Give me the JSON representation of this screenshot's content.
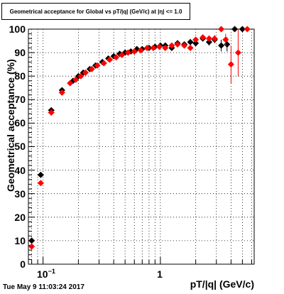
{
  "title": "Geometrical acceptance for Global vs pT/|q| (GeV/c) at |η| <= 1.0",
  "timestamp": "Tue May  9 11:03:24 2017",
  "chart_data": {
    "type": "scatter",
    "xlabel": "pT/|q| (GeV/c)",
    "ylabel": "Geometrical acceptance (%)",
    "x_scale": "log",
    "xlim": [
      0.075,
      6.3
    ],
    "ylim": [
      0,
      100
    ],
    "x_tick_labels": [
      "10^-1",
      "1"
    ],
    "y_tick_labels": [
      "0",
      "10",
      "20",
      "30",
      "40",
      "50",
      "60",
      "70",
      "80",
      "90",
      "100"
    ],
    "grid": true,
    "series": [
      {
        "color": "#000000",
        "marker": "diamond",
        "points": [
          {
            "x": 0.08,
            "y": 10,
            "ex": 0.003,
            "ey": 1
          },
          {
            "x": 0.0955,
            "y": 38,
            "ex": 0.006,
            "ey": 1
          },
          {
            "x": 0.1175,
            "y": 65.5,
            "ex": 0.0075,
            "ey": 1
          },
          {
            "x": 0.145,
            "y": 74,
            "ex": 0.007,
            "ey": 0
          },
          {
            "x": 0.18,
            "y": 78,
            "ey": 0
          },
          {
            "x": 0.2,
            "y": 80,
            "ey": 0
          },
          {
            "x": 0.22,
            "y": 81.5,
            "ey": 0
          },
          {
            "x": 0.25,
            "y": 83,
            "ey": 0
          },
          {
            "x": 0.28,
            "y": 84.5,
            "ey": 0
          },
          {
            "x": 0.32,
            "y": 86,
            "ey": 0
          },
          {
            "x": 0.36,
            "y": 87.5,
            "ey": 0
          },
          {
            "x": 0.4,
            "y": 88.5,
            "ey": 0
          },
          {
            "x": 0.45,
            "y": 89.5,
            "ey": 0
          },
          {
            "x": 0.5,
            "y": 90,
            "ey": 0
          },
          {
            "x": 0.56,
            "y": 90.5,
            "ey": 0
          },
          {
            "x": 0.63,
            "y": 91.5,
            "ey": 0
          },
          {
            "x": 0.7,
            "y": 91.5,
            "ey": 0
          },
          {
            "x": 0.8,
            "y": 92,
            "ey": 0
          },
          {
            "x": 0.9,
            "y": 92.5,
            "ey": 0
          },
          {
            "x": 1.0,
            "y": 93,
            "ey": 0
          },
          {
            "x": 1.1,
            "y": 93,
            "ey": 0
          },
          {
            "x": 1.25,
            "y": 92,
            "ey": 0.8
          },
          {
            "x": 1.4,
            "y": 94,
            "ey": 0.8
          },
          {
            "x": 1.6,
            "y": 93.5,
            "ey": 0.8
          },
          {
            "x": 1.8,
            "y": 94.5,
            "ey": 1
          },
          {
            "x": 2.0,
            "y": 94,
            "ey": 1
          },
          {
            "x": 2.3,
            "y": 96,
            "ey": 1
          },
          {
            "x": 2.6,
            "y": 94.5,
            "ey": 1.5
          },
          {
            "x": 2.9,
            "y": 95.5,
            "ey": 1.5
          },
          {
            "x": 3.3,
            "y": 93,
            "ey": 2.5
          },
          {
            "x": 3.7,
            "y": 93.5,
            "ey": 3
          },
          {
            "x": 4.3,
            "y": 100,
            "ey": 0
          },
          {
            "x": 5.0,
            "y": 100,
            "ey": 0
          }
        ]
      },
      {
        "color": "#ff0000",
        "marker": "diamond",
        "points": [
          {
            "x": 0.08,
            "y": 7.5,
            "ex": 0.003,
            "ey": 1
          },
          {
            "x": 0.0955,
            "y": 34.5,
            "ex": 0.006,
            "ey": 1
          },
          {
            "x": 0.1175,
            "y": 64.5,
            "ex": 0.0075,
            "ey": 1
          },
          {
            "x": 0.145,
            "y": 73,
            "ex": 0.007,
            "ey": 1
          },
          {
            "x": 0.17,
            "y": 77,
            "ey": 0
          },
          {
            "x": 0.19,
            "y": 78.5,
            "ey": 0
          },
          {
            "x": 0.21,
            "y": 80,
            "ey": 0
          },
          {
            "x": 0.23,
            "y": 81.5,
            "ey": 0
          },
          {
            "x": 0.26,
            "y": 83,
            "ey": 0
          },
          {
            "x": 0.29,
            "y": 84.5,
            "ey": 0
          },
          {
            "x": 0.33,
            "y": 85.5,
            "ey": 0
          },
          {
            "x": 0.37,
            "y": 87,
            "ey": 0
          },
          {
            "x": 0.42,
            "y": 88,
            "ey": 0
          },
          {
            "x": 0.47,
            "y": 89,
            "ey": 0
          },
          {
            "x": 0.53,
            "y": 90,
            "ey": 0
          },
          {
            "x": 0.6,
            "y": 90.5,
            "ey": 0
          },
          {
            "x": 0.68,
            "y": 91,
            "ey": 0
          },
          {
            "x": 0.77,
            "y": 92,
            "ey": 0
          },
          {
            "x": 0.87,
            "y": 92,
            "ey": 0
          },
          {
            "x": 0.98,
            "y": 92.5,
            "ey": 0
          },
          {
            "x": 1.1,
            "y": 92,
            "ey": 0.8
          },
          {
            "x": 1.25,
            "y": 93,
            "ey": 0.8
          },
          {
            "x": 1.4,
            "y": 93.5,
            "ey": 1
          },
          {
            "x": 1.6,
            "y": 93,
            "ey": 1
          },
          {
            "x": 1.8,
            "y": 92,
            "ey": 1.2
          },
          {
            "x": 2.0,
            "y": 95.5,
            "ey": 1
          },
          {
            "x": 2.3,
            "y": 96.5,
            "ey": 1
          },
          {
            "x": 2.6,
            "y": 96,
            "ey": 1.2
          },
          {
            "x": 2.9,
            "y": 96,
            "ey": 1.5
          },
          {
            "x": 3.3,
            "y": 100,
            "ey": 0
          },
          {
            "x": 3.6,
            "y": 95.5,
            "ey": 2.5
          },
          {
            "x": 4.0,
            "y": 85,
            "ey": 8
          },
          {
            "x": 4.6,
            "y": 90,
            "ey": 10
          },
          {
            "x": 5.5,
            "y": 100,
            "ey": 0
          }
        ]
      }
    ]
  }
}
